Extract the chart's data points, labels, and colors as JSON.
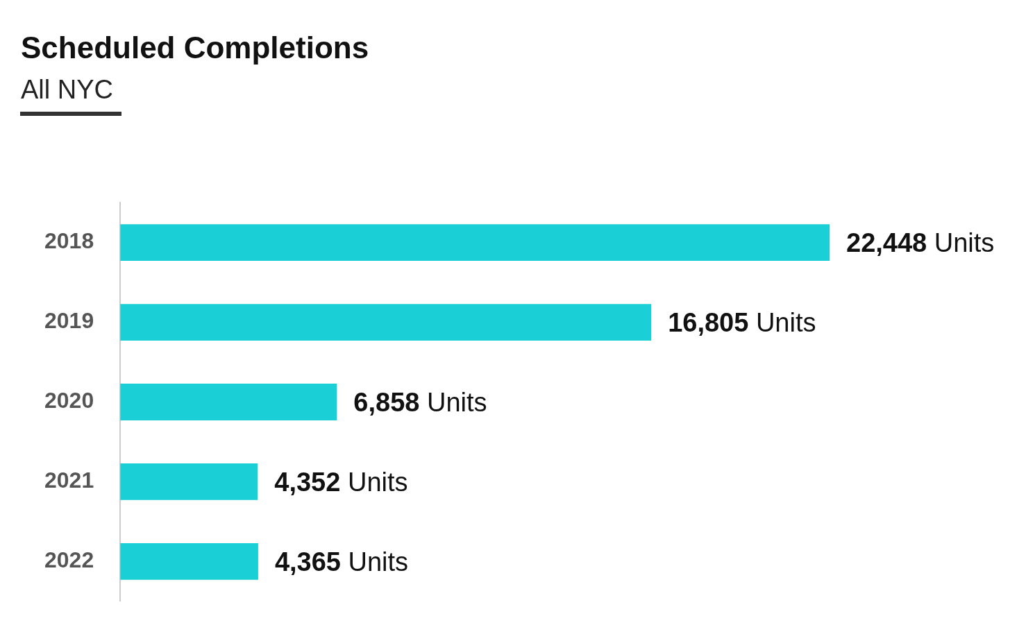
{
  "chart_data": {
    "type": "bar",
    "orientation": "horizontal",
    "title": "Scheduled Completions",
    "subtitle": "All NYC",
    "categories": [
      "2018",
      "2019",
      "2020",
      "2021",
      "2022"
    ],
    "values": [
      22448,
      16805,
      6858,
      4352,
      4365
    ],
    "color": "#1acfd6",
    "value_labels": [
      "22,448 Units",
      "16,805 Units",
      "6,858 Units",
      "4,352 Units",
      "4,365 Units"
    ]
  }
}
